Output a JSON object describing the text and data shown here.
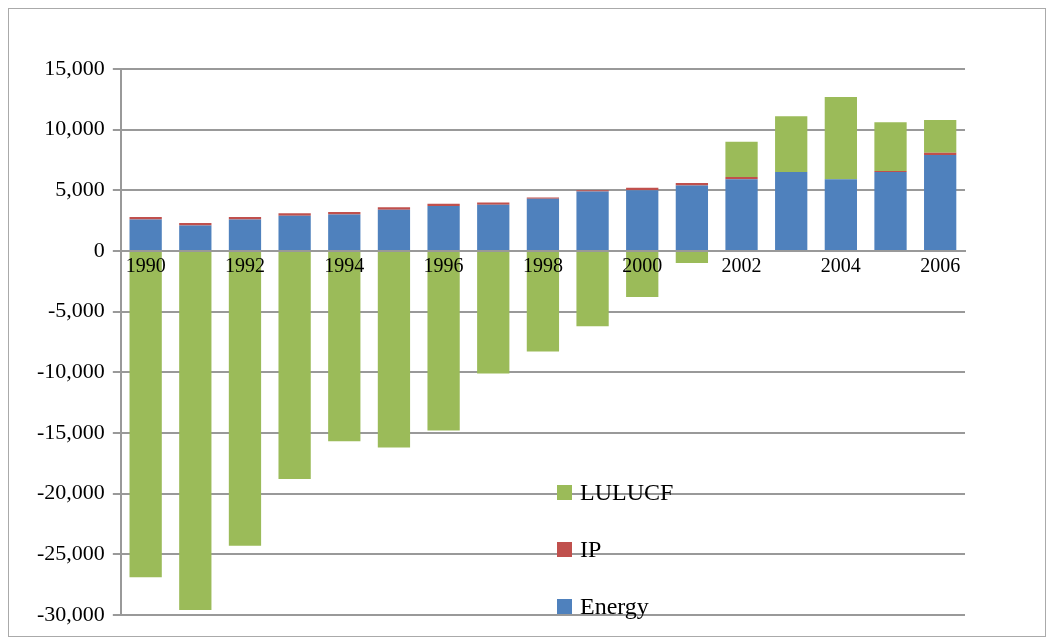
{
  "chart_data": {
    "type": "bar",
    "stacked": true,
    "categories": [
      "1990",
      null,
      "1992",
      null,
      "1994",
      null,
      "1996",
      null,
      "1998",
      null,
      "2000",
      null,
      "2002",
      null,
      "2004",
      null,
      "2006"
    ],
    "series": [
      {
        "name": "Energy",
        "color": "#4f81bd",
        "values": [
          2600,
          2100,
          2600,
          2900,
          3000,
          3400,
          3700,
          3800,
          4300,
          4900,
          5000,
          5400,
          5900,
          6500,
          5900,
          6500,
          7900
        ]
      },
      {
        "name": "IP",
        "color": "#c0504d",
        "values": [
          200,
          200,
          200,
          200,
          200,
          200,
          200,
          200,
          100,
          100,
          200,
          200,
          200,
          null,
          null,
          100,
          200
        ]
      },
      {
        "name": "LULUCF",
        "color": "#9bbb59",
        "values": [
          -26900,
          -29600,
          -24300,
          -18800,
          -15700,
          -16200,
          -14800,
          -10100,
          -8300,
          -6200,
          -3800,
          -1000,
          2900,
          4600,
          6800,
          4000,
          2700
        ]
      }
    ],
    "ylim": [
      -30000,
      15000
    ],
    "yticks": [
      {
        "value": -30000,
        "label": "-30,000"
      },
      {
        "value": -25000,
        "label": "-25,000"
      },
      {
        "value": -20000,
        "label": "-20,000"
      },
      {
        "value": -15000,
        "label": "-15,000"
      },
      {
        "value": -10000,
        "label": "-10,000"
      },
      {
        "value": -5000,
        "label": "-5,000"
      },
      0,
      {
        "value": 5000,
        "label": "5,000"
      },
      {
        "value": 10000,
        "label": "10,000"
      },
      {
        "value": 15000,
        "label": "15,000"
      }
    ],
    "grid": "y",
    "legend": "bottom"
  }
}
